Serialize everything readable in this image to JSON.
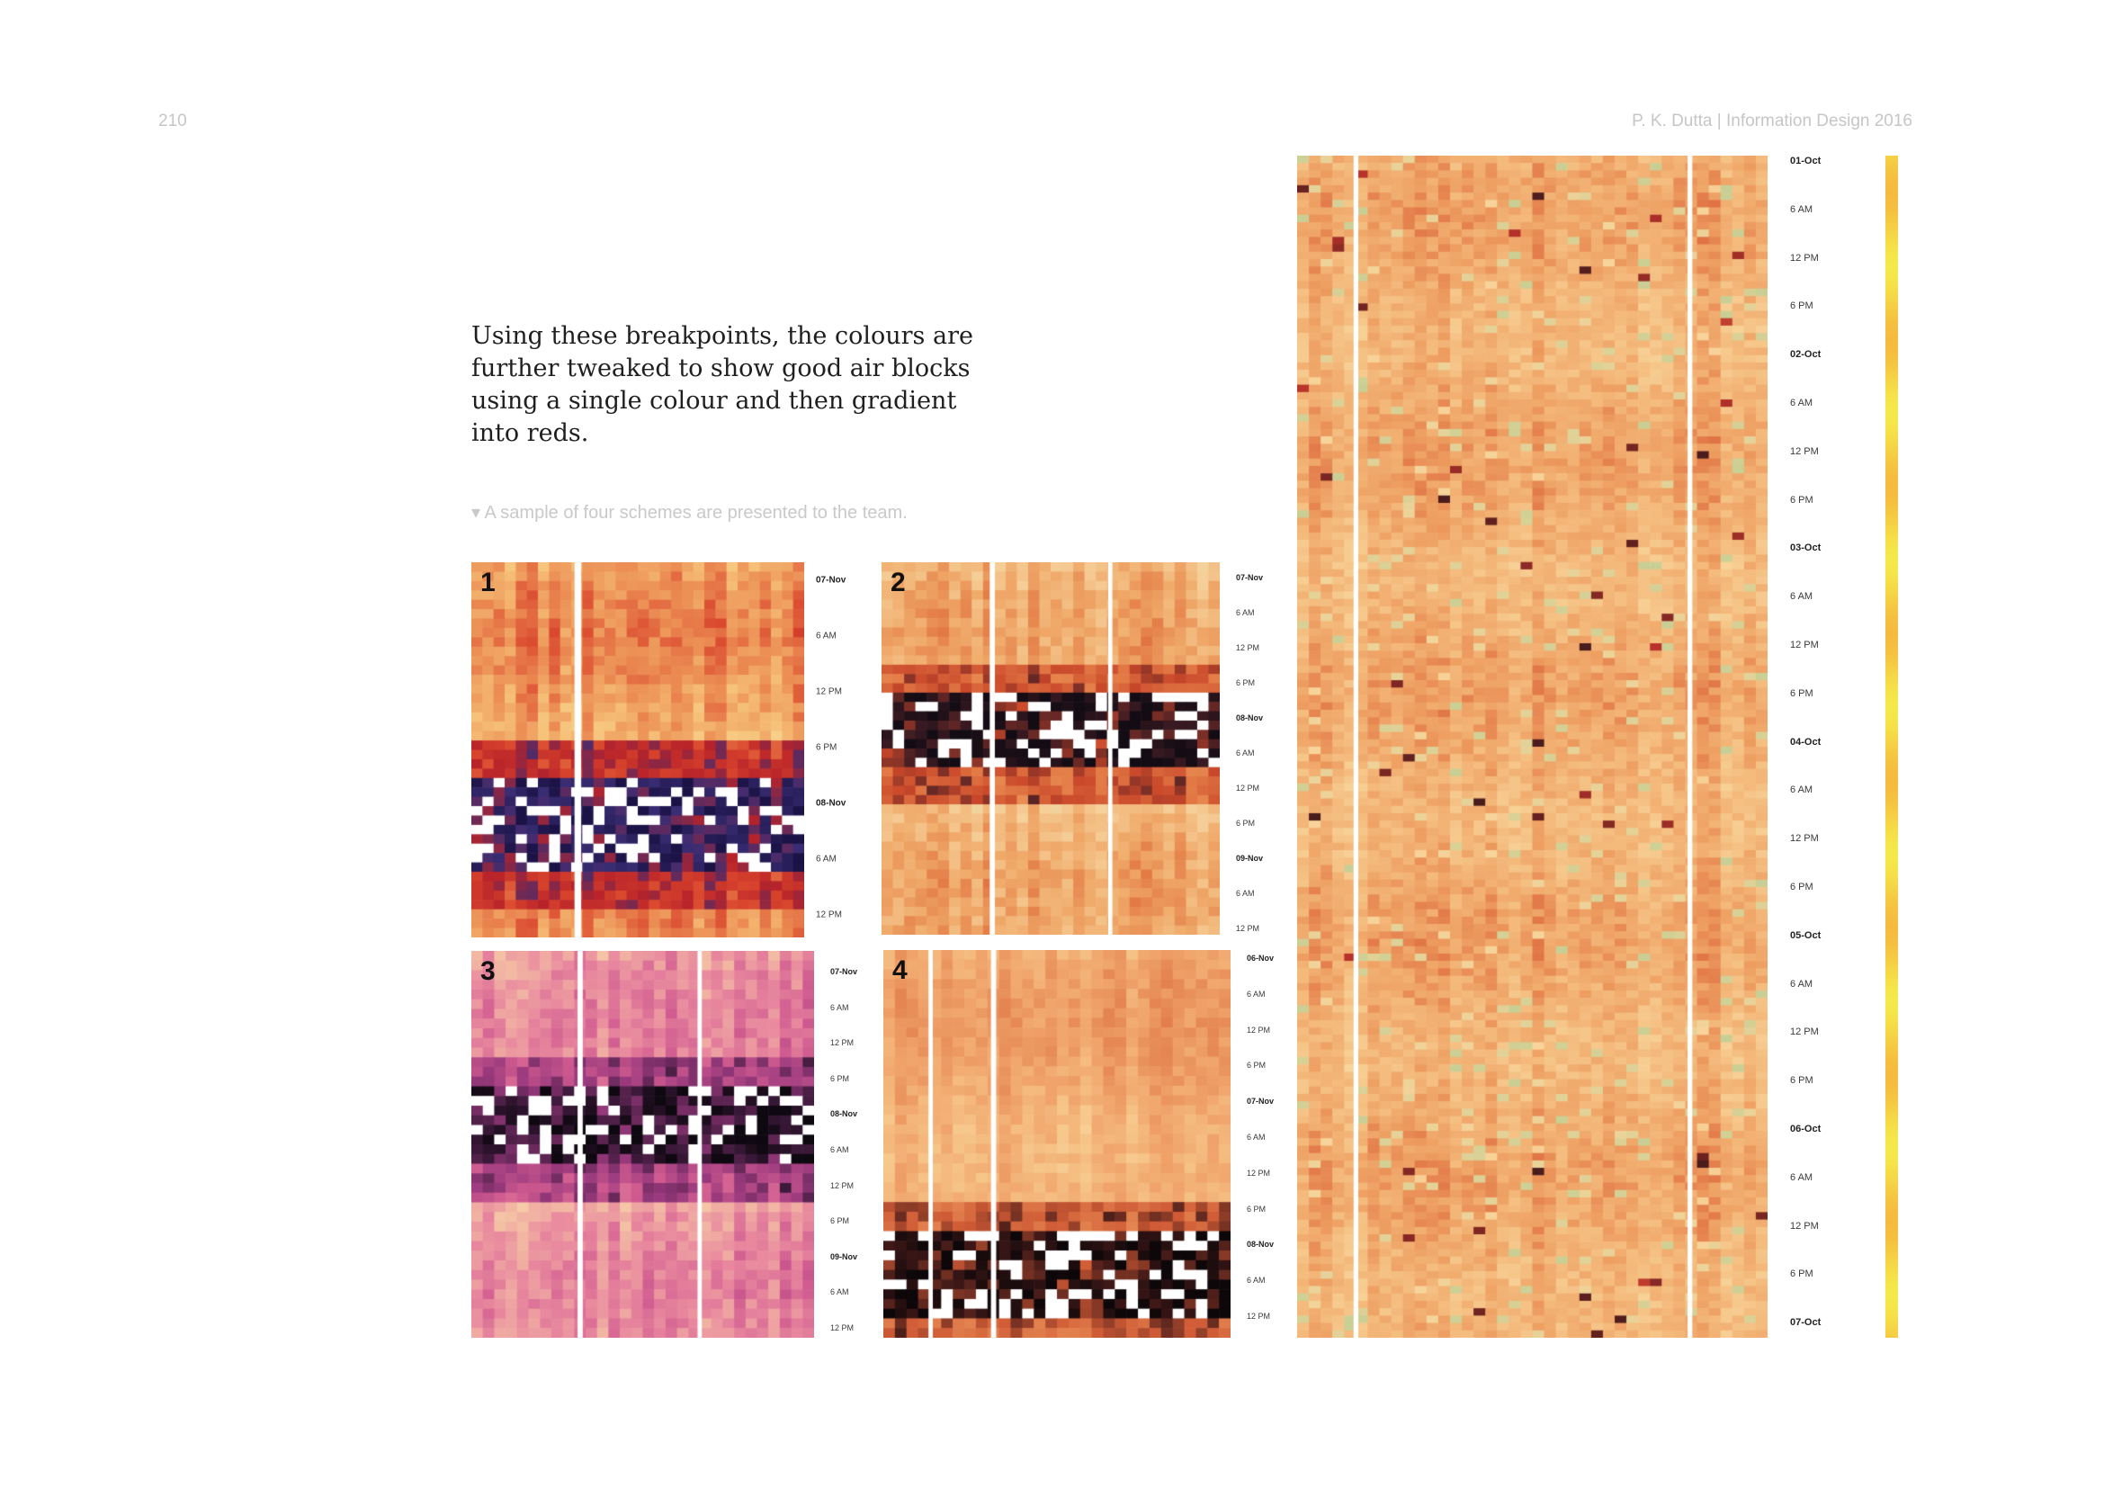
{
  "header": {
    "page_number": "210",
    "running_head": "P. K. Dutta | Information Design 2016"
  },
  "body_text": "Using these breakpoints, the colours are further tweaked to show good air blocks using a single colour and then gradient into reds.",
  "caption": "▾ A sample of four schemes are presented to the team.",
  "small_panels": [
    {
      "number": "1",
      "scheme": "red-blue",
      "ticks": [
        "07-Nov",
        "6 AM",
        "12 PM",
        "6 PM",
        "08-Nov",
        "6 AM",
        "12 PM"
      ]
    },
    {
      "number": "2",
      "scheme": "orange-green",
      "ticks": [
        "07-Nov",
        "6 AM",
        "12 PM",
        "6 PM",
        "08-Nov",
        "6 AM",
        "12 PM",
        "6 PM",
        "09-Nov",
        "6 AM",
        "12 PM"
      ]
    },
    {
      "number": "3",
      "scheme": "pink-purple",
      "ticks": [
        "07-Nov",
        "6 AM",
        "12 PM",
        "6 PM",
        "08-Nov",
        "6 AM",
        "12 PM",
        "6 PM",
        "09-Nov",
        "6 AM",
        "12 PM"
      ]
    },
    {
      "number": "4",
      "scheme": "orange",
      "ticks": [
        "06-Nov",
        "6 AM",
        "12 PM",
        "6 PM",
        "07-Nov",
        "6 AM",
        "12 PM",
        "6 PM",
        "08-Nov",
        "6 AM",
        "12 PM"
      ]
    }
  ],
  "large_panel": {
    "scheme": "orange-green-large",
    "ticks": [
      "01-Oct",
      "6 AM",
      "12 PM",
      "6 PM",
      "02-Oct",
      "6 AM",
      "12 PM",
      "6 PM",
      "03-Oct",
      "6 AM",
      "12 PM",
      "6 PM",
      "04-Oct",
      "6 AM",
      "12 PM",
      "6 PM",
      "05-Oct",
      "6 AM",
      "12 PM",
      "6 PM",
      "06-Oct",
      "6 AM",
      "12 PM",
      "6 PM",
      "07-Oct"
    ]
  },
  "colors": {
    "good_air": "#c9cf94",
    "light": "#f8d49a",
    "mid": "#f0a868",
    "red": "#d4502c",
    "dark": "#4a1c1c",
    "legend_yellow": "#f5e84a",
    "legend_orange": "#f5b03c"
  }
}
